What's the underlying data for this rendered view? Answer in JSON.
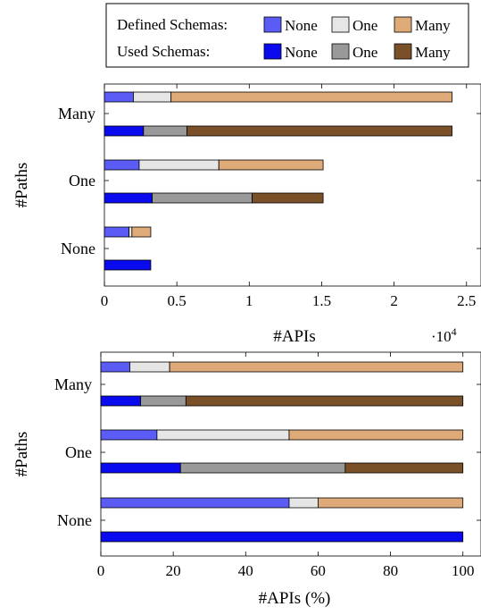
{
  "legend": {
    "defined_label": "Defined Schemas:",
    "used_label": "Used Schemas:",
    "defined_items": [
      {
        "label": "None",
        "color": "#5b5bf5"
      },
      {
        "label": "One",
        "color": "#e6e6e6"
      },
      {
        "label": "Many",
        "color": "#deaa78"
      }
    ],
    "used_items": [
      {
        "label": "None",
        "color": "#0a0aef"
      },
      {
        "label": "One",
        "color": "#999999"
      },
      {
        "label": "Many",
        "color": "#7a5028"
      }
    ]
  },
  "chart_data": [
    {
      "type": "bar",
      "orientation": "horizontal",
      "stacked": true,
      "ylabel": "#Paths",
      "xlabel": "#APIs",
      "x_scale_label": "·10^4",
      "xlim": [
        0,
        2.6
      ],
      "xticks": [
        "0",
        "0.5",
        "1",
        "1.5",
        "2",
        "2.5"
      ],
      "categories": [
        "Many",
        "One",
        "None"
      ],
      "groups": {
        "Defined Schemas": [
          {
            "name": "None",
            "values": [
              0.2,
              0.24,
              0.17
            ]
          },
          {
            "name": "One",
            "values": [
              0.26,
              0.55,
              0.02
            ]
          },
          {
            "name": "Many",
            "values": [
              1.94,
              0.72,
              0.13
            ]
          }
        ],
        "Used Schemas": [
          {
            "name": "None",
            "values": [
              0.27,
              0.33,
              0.32
            ]
          },
          {
            "name": "One",
            "values": [
              0.3,
              0.69,
              0
            ]
          },
          {
            "name": "Many",
            "values": [
              1.83,
              0.49,
              0
            ]
          }
        ]
      }
    },
    {
      "type": "bar",
      "orientation": "horizontal",
      "stacked": true,
      "ylabel": "#Paths",
      "xlabel": "#APIs (%)",
      "xlim": [
        0,
        105
      ],
      "xticks": [
        "0",
        "20",
        "40",
        "60",
        "80",
        "100"
      ],
      "categories": [
        "Many",
        "One",
        "None"
      ],
      "groups": {
        "Defined Schemas": [
          {
            "name": "None",
            "values": [
              8,
              15.5,
              52
            ]
          },
          {
            "name": "One",
            "values": [
              11,
              36.5,
              8
            ]
          },
          {
            "name": "Many",
            "values": [
              81,
              48,
              40
            ]
          }
        ],
        "Used Schemas": [
          {
            "name": "None",
            "values": [
              11,
              22,
              100
            ]
          },
          {
            "name": "One",
            "values": [
              12.5,
              45.5,
              0
            ]
          },
          {
            "name": "Many",
            "values": [
              76.5,
              32.5,
              0
            ]
          }
        ]
      }
    }
  ]
}
